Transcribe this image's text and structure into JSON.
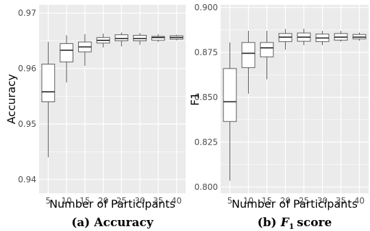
{
  "chart_data": [
    {
      "type": "boxplot",
      "caption": {
        "label": "(a)",
        "text": "Accuracy"
      },
      "xlabel": "Number of Participants",
      "ylabel": "Accuracy",
      "ylim": [
        0.9375,
        0.9715
      ],
      "yticks": [
        "0.94",
        "0.95",
        "0.96",
        "0.97"
      ],
      "ytick_values": [
        0.94,
        0.95,
        0.96,
        0.97
      ],
      "categories": [
        "5",
        "10",
        "15",
        "20",
        "25",
        "30",
        "35",
        "40"
      ],
      "boxes": [
        {
          "min": 0.944,
          "q1": 0.954,
          "median": 0.9558,
          "q3": 0.9608,
          "max": 0.9648
        },
        {
          "min": 0.9575,
          "q1": 0.9612,
          "median": 0.9633,
          "q3": 0.9645,
          "max": 0.966
        },
        {
          "min": 0.9605,
          "q1": 0.963,
          "median": 0.9639,
          "q3": 0.9648,
          "max": 0.9662
        },
        {
          "min": 0.9638,
          "q1": 0.9646,
          "median": 0.9651,
          "q3": 0.9656,
          "max": 0.9663
        },
        {
          "min": 0.964,
          "q1": 0.965,
          "median": 0.9654,
          "q3": 0.9661,
          "max": 0.9665
        },
        {
          "min": 0.9643,
          "q1": 0.965,
          "median": 0.9654,
          "q3": 0.966,
          "max": 0.9664
        },
        {
          "min": 0.9648,
          "q1": 0.9651,
          "median": 0.9656,
          "q3": 0.9658,
          "max": 0.9662
        },
        {
          "min": 0.9651,
          "q1": 0.9653,
          "median": 0.9656,
          "q3": 0.9659,
          "max": 0.9661
        }
      ],
      "grid": true
    },
    {
      "type": "boxplot",
      "caption": {
        "label": "(b)",
        "text": "score",
        "symbol": "F",
        "symbol_subscript": "1"
      },
      "xlabel": "Number of Participants",
      "ylabel": "F1",
      "ylim": [
        0.7965,
        0.9015
      ],
      "yticks": [
        "0.800",
        "0.825",
        "0.850",
        "0.875",
        "0.900"
      ],
      "ytick_values": [
        0.8,
        0.825,
        0.85,
        0.875,
        0.9
      ],
      "categories": [
        "5",
        "10",
        "15",
        "20",
        "25",
        "30",
        "35",
        "40"
      ],
      "boxes": [
        {
          "min": 0.8035,
          "q1": 0.8365,
          "median": 0.8475,
          "q3": 0.866,
          "max": 0.8805
        },
        {
          "min": 0.852,
          "q1": 0.8665,
          "median": 0.8745,
          "q3": 0.8805,
          "max": 0.887
        },
        {
          "min": 0.86,
          "q1": 0.8725,
          "median": 0.8775,
          "q3": 0.8805,
          "max": 0.887
        },
        {
          "min": 0.8765,
          "q1": 0.881,
          "median": 0.8835,
          "q3": 0.8855,
          "max": 0.888
        },
        {
          "min": 0.879,
          "q1": 0.8812,
          "median": 0.8835,
          "q3": 0.8858,
          "max": 0.8882
        },
        {
          "min": 0.879,
          "q1": 0.881,
          "median": 0.883,
          "q3": 0.8852,
          "max": 0.887
        },
        {
          "min": 0.881,
          "q1": 0.8818,
          "median": 0.8835,
          "q3": 0.8855,
          "max": 0.887
        },
        {
          "min": 0.8815,
          "q1": 0.8825,
          "median": 0.8835,
          "q3": 0.885,
          "max": 0.886
        }
      ],
      "grid": true
    }
  ],
  "colors": {
    "panel_background": "#ebebeb",
    "grid_line": "#ffffff",
    "box_fill": "#ffffff",
    "box_stroke": "#5a5a5a",
    "median": "#222222",
    "tick_text": "#4d4d4d"
  }
}
